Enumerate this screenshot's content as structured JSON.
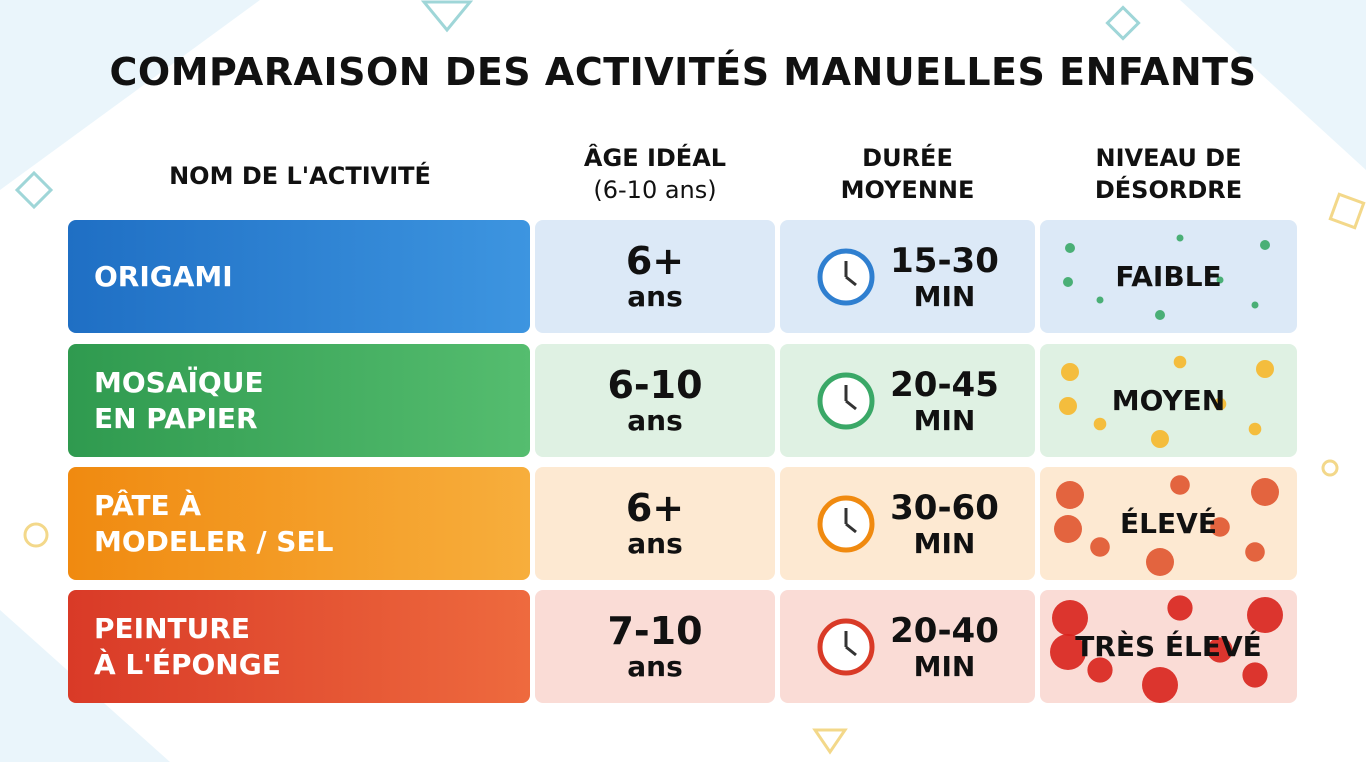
{
  "title": "COMPARAISON DES ACTIVITÉS MANUELLES ENFANTS",
  "table": {
    "headers": [
      [
        "NOM DE L'ACTIVITÉ"
      ],
      [
        "ÂGE IDÉAL",
        "(6-10 ans)"
      ],
      [
        "DURÉE",
        "MOYENNE"
      ],
      [
        "NIVEAU DE",
        "DÉSORDRE"
      ]
    ],
    "rows": [
      {
        "activity": [
          "ORIGAMI"
        ],
        "age": [
          "6+",
          "ans"
        ],
        "duration": [
          "15-30",
          "MIN"
        ],
        "mess": "FAIBLE"
      },
      {
        "activity": [
          "MOSAÏQUE",
          "EN PAPIER"
        ],
        "age": [
          "6-10",
          "ans"
        ],
        "duration": [
          "20-45",
          "MIN"
        ],
        "mess": "MOYEN"
      },
      {
        "activity": [
          "PÂTE À",
          "MODELER / SEL"
        ],
        "age": [
          "6+",
          "ans"
        ],
        "duration": [
          "30-60",
          "MIN"
        ],
        "mess": "ÉLEVÉ"
      },
      {
        "activity": [
          "PEINTURE",
          "À L'ÉPONGE"
        ],
        "age": [
          "7-10",
          "ans"
        ],
        "duration": [
          "20-40",
          "MIN"
        ],
        "mess": "TRÈS ÉLEVÉ"
      }
    ]
  }
}
